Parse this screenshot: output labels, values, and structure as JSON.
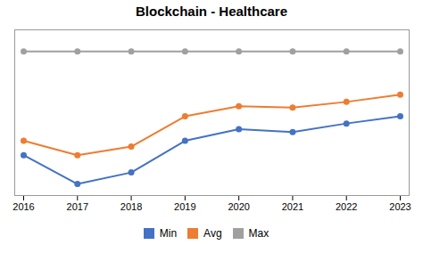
{
  "chart_data": {
    "type": "line",
    "title": "Blockchain - Healthcare",
    "x": [
      2016,
      2017,
      2018,
      2019,
      2020,
      2021,
      2022,
      2023
    ],
    "series": [
      {
        "name": "Min",
        "color": "#4472C4",
        "values": [
          28,
          8,
          16,
          38,
          46,
          44,
          50,
          55
        ]
      },
      {
        "name": "Avg",
        "color": "#ED7D31",
        "values": [
          38,
          28,
          34,
          55,
          62,
          61,
          65,
          70
        ]
      },
      {
        "name": "Max",
        "color": "#A0A0A0",
        "values": [
          100,
          100,
          100,
          100,
          100,
          100,
          100,
          100
        ]
      }
    ],
    "xlim": [
      2016,
      2023
    ],
    "xticks": [
      2016,
      2017,
      2018,
      2019,
      2020,
      2021,
      2022,
      2023
    ],
    "ylim": [
      0,
      115
    ],
    "tick_labels": "x",
    "grid": false,
    "legend": "bottom",
    "marker": "circle"
  }
}
